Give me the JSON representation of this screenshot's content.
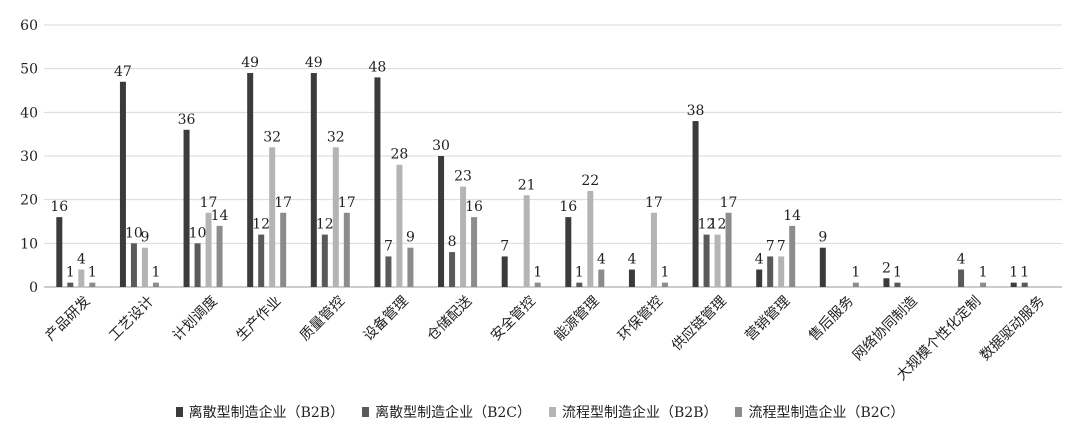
{
  "chart_data": {
    "type": "bar",
    "title": "",
    "xlabel": "",
    "ylabel": "",
    "ylim": [
      0,
      60
    ],
    "yticks": [
      0,
      10,
      20,
      30,
      40,
      50,
      60
    ],
    "grid": true,
    "legend_position": "bottom",
    "categories": [
      "产品研发",
      "工艺设计",
      "计划调度",
      "生产作业",
      "质量管控",
      "设备管理",
      "仓储配送",
      "安全管控",
      "能源管理",
      "环保管控",
      "供应链管理",
      "营销管理",
      "售后服务",
      "网络协同制造",
      "大规模个性化定制",
      "数据驱动服务"
    ],
    "series": [
      {
        "name": "离散型制造企业（B2B）",
        "color": "#3b3b3b",
        "values": [
          16,
          47,
          36,
          49,
          49,
          48,
          30,
          7,
          16,
          4,
          38,
          4,
          9,
          2,
          0,
          1
        ]
      },
      {
        "name": "离散型制造企业（B2C）",
        "color": "#5a5a5a",
        "values": [
          1,
          10,
          10,
          12,
          12,
          7,
          8,
          null,
          1,
          null,
          12,
          7,
          null,
          1,
          4,
          1
        ]
      },
      {
        "name": "流程型制造企业（B2B）",
        "color": "#b4b4b4",
        "values": [
          4,
          9,
          17,
          32,
          32,
          28,
          23,
          21,
          22,
          17,
          12,
          7,
          null,
          null,
          null,
          null
        ]
      },
      {
        "name": "流程型制造企业（B2C）",
        "color": "#8c8c8c",
        "values": [
          1,
          1,
          14,
          17,
          17,
          9,
          16,
          1,
          4,
          1,
          17,
          14,
          1,
          null,
          1,
          null
        ]
      }
    ]
  }
}
